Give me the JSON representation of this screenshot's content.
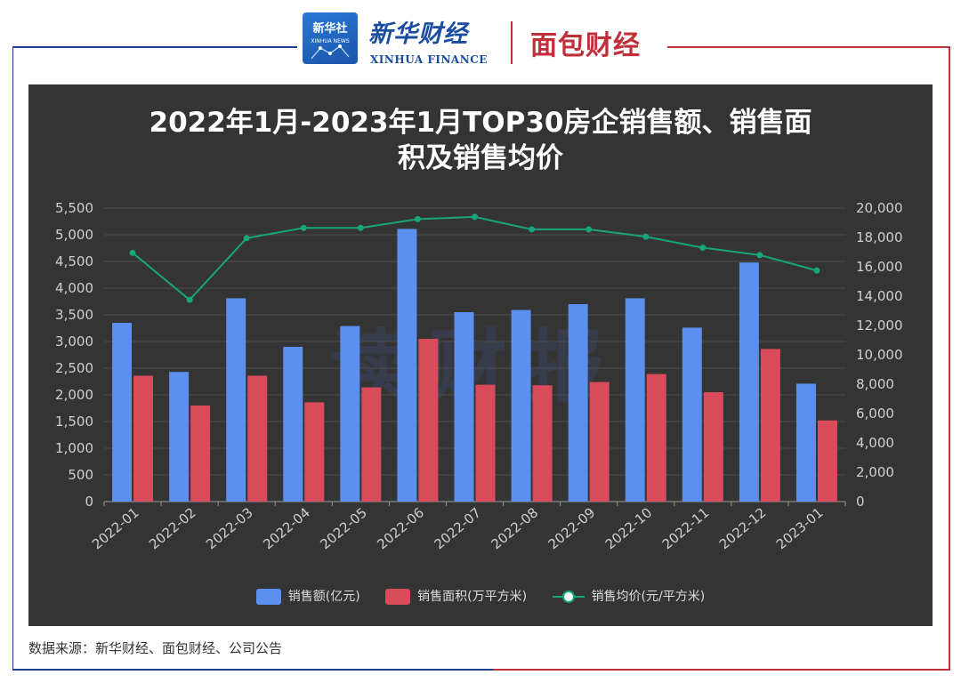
{
  "header": {
    "xinhua_cn": "新华财经",
    "xinhua_en": "XINHUA FINANCE",
    "mianbao": "面包财经"
  },
  "watermark": "读财报",
  "source": "数据来源：新华财经、面包财经、公司公告",
  "colors": {
    "sales": "#5b8ff0",
    "area": "#d94a5a",
    "price": "#17a57c"
  },
  "chart_data": {
    "type": "bar",
    "title_line1": "2022年1月-2023年1月TOP30房企销售额、销售面",
    "title_line2": "积及销售均价",
    "categories": [
      "2022-01",
      "2022-02",
      "2022-03",
      "2022-04",
      "2022-05",
      "2022-06",
      "2022-07",
      "2022-08",
      "2022-09",
      "2022-10",
      "2022-11",
      "2022-12",
      "2023-01"
    ],
    "series": [
      {
        "name": "销售额(亿元)",
        "kind": "bar",
        "axis": "left",
        "values": [
          3350,
          2430,
          3810,
          2900,
          3290,
          5110,
          3550,
          3590,
          3700,
          3810,
          3260,
          4480,
          2210
        ]
      },
      {
        "name": "销售面积(万平方米)",
        "kind": "bar",
        "axis": "left",
        "values": [
          2360,
          1800,
          2360,
          1860,
          2140,
          3050,
          2190,
          2180,
          2240,
          2390,
          2050,
          2860,
          1520
        ]
      },
      {
        "name": "销售均价(元/平方米)",
        "kind": "line",
        "axis": "right",
        "values": [
          16950,
          13750,
          17950,
          18650,
          18650,
          19250,
          19400,
          18550,
          18550,
          18050,
          17300,
          16800,
          15750
        ]
      }
    ],
    "y_left": {
      "min": 0,
      "max": 5500,
      "ticks": [
        "0",
        "500",
        "1,000",
        "1,500",
        "2,000",
        "2,500",
        "3,000",
        "3,500",
        "4,000",
        "4,500",
        "5,000",
        "5,500"
      ]
    },
    "y_right": {
      "min": 0,
      "max": 20000,
      "ticks": [
        "0",
        "2,000",
        "4,000",
        "6,000",
        "8,000",
        "10,000",
        "12,000",
        "14,000",
        "16,000",
        "18,000",
        "20,000"
      ]
    },
    "grid": true,
    "legend_position": "bottom"
  }
}
